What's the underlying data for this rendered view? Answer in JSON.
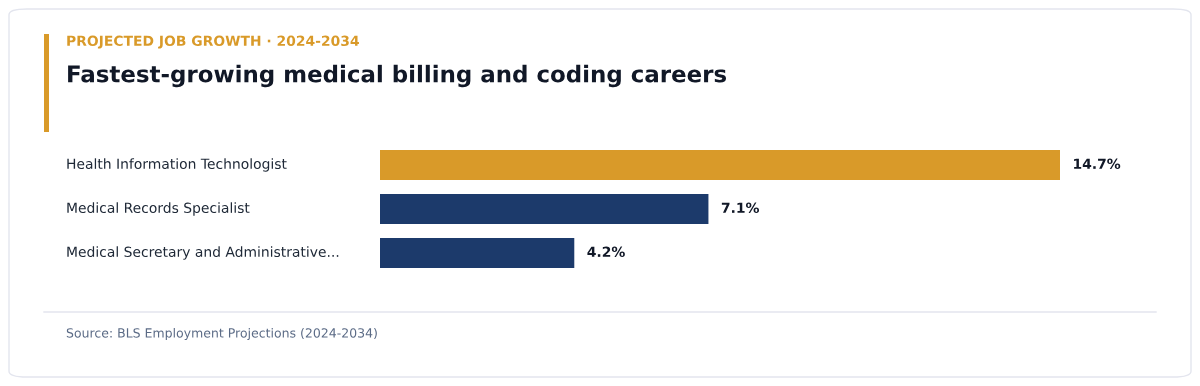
{
  "chart_data": {
    "type": "bar",
    "orientation": "horizontal",
    "subtitle": "PROJECTED JOB GROWTH · 2024-2034",
    "title": "Fastest-growing medical billing and coding careers",
    "categories": [
      "Health Information Technologist",
      "Medical Records Specialist",
      "Medical Secretary and Administrative..."
    ],
    "values": [
      14.7,
      7.1,
      4.2
    ],
    "colors": [
      "#d99a29",
      "#1c3a6b",
      "#1c3a6b"
    ],
    "value_labels": [
      "14.7%",
      "7.1%",
      "4.2%"
    ],
    "annotations": [
      "Source: BLS Employment Projections (2024-2034)"
    ],
    "legend": false
  }
}
